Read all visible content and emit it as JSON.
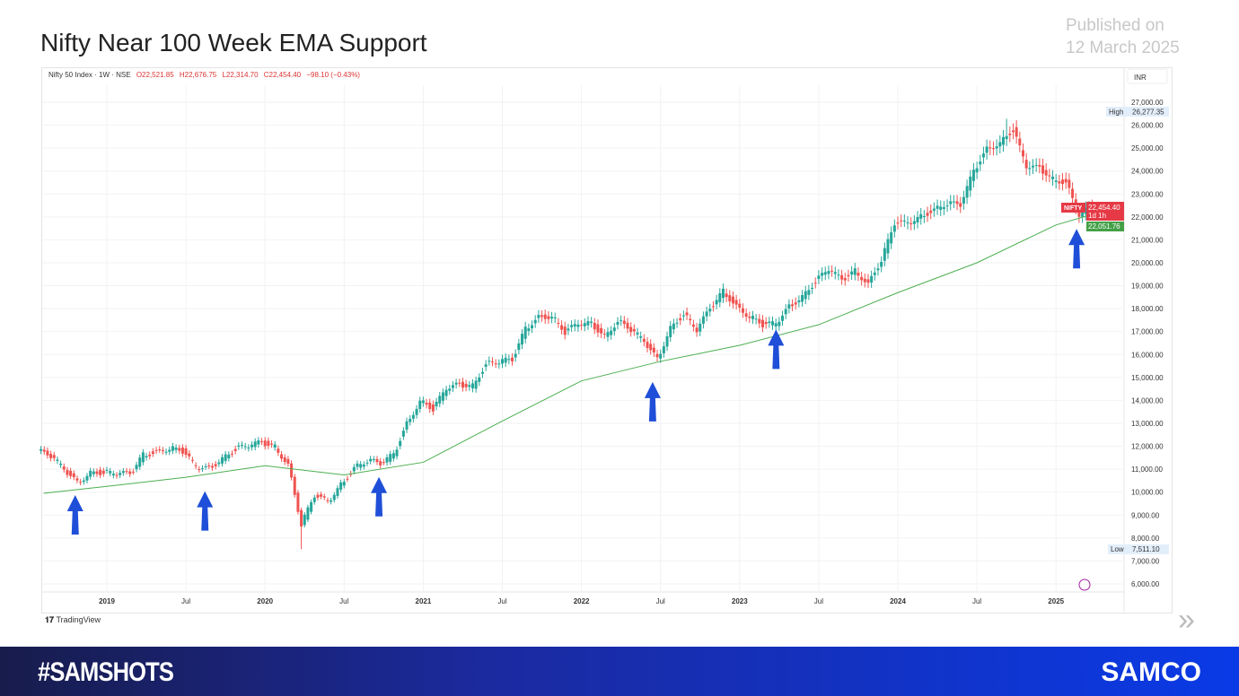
{
  "header": {
    "title": "Nifty Near 100 Week EMA Support",
    "published_label": "Published on",
    "published_date": "12 March 2025"
  },
  "legend": {
    "symbol": "Nifty 50 Index · 1W · NSE",
    "open": "O22,521.85",
    "high": "H22,676.75",
    "low": "L22,314.70",
    "close": "C22,454.40",
    "change": "−98.10 (−0.43%)"
  },
  "currency": "INR",
  "footer": {
    "hashtag": "#SAMSHOTS",
    "brand": "SAMCO",
    "tv_logo": "TradingView"
  },
  "colors": {
    "up": "#26a69a",
    "down": "#ef5350",
    "ema": "#4caf50",
    "arrow": "#1f4fd8",
    "footer_start": "#181c4c",
    "footer_end": "#0a3ae6"
  },
  "chart_data": {
    "type": "candlestick",
    "title": "Nifty Near 100 Week EMA Support",
    "ylim": [
      6000,
      27000
    ],
    "y_ticks": [
      "27,000.00",
      "26,000.00",
      "25,000.00",
      "24,000.00",
      "23,000.00",
      "22,000.00",
      "21,000.00",
      "20,000.00",
      "19,000.00",
      "18,000.00",
      "17,000.00",
      "16,000.00",
      "15,000.00",
      "14,000.00",
      "13,000.00",
      "12,000.00",
      "11,000.00",
      "10,000.00",
      "9,000.00",
      "8,000.00",
      "7,000.00",
      "6,000.00"
    ],
    "x_ticks": [
      {
        "label": "2019",
        "t": 2019.0
      },
      {
        "label": "Jul",
        "t": 2019.5
      },
      {
        "label": "2020",
        "t": 2020.0
      },
      {
        "label": "Jul",
        "t": 2020.5
      },
      {
        "label": "2021",
        "t": 2021.0
      },
      {
        "label": "Jul",
        "t": 2021.5
      },
      {
        "label": "2022",
        "t": 2022.0
      },
      {
        "label": "Jul",
        "t": 2022.5
      },
      {
        "label": "2023",
        "t": 2023.0
      },
      {
        "label": "Jul",
        "t": 2023.5
      },
      {
        "label": "2024",
        "t": 2024.0
      },
      {
        "label": "Jul",
        "t": 2024.5
      },
      {
        "label": "2025",
        "t": 2025.0
      }
    ],
    "start": "2018-08",
    "approx_monthly_close": [
      11600,
      11000,
      10400,
      10850,
      10860,
      10830,
      10790,
      11620,
      11750,
      11920,
      11790,
      11120,
      11020,
      11470,
      11880,
      12050,
      12170,
      11960,
      11200,
      8600,
      9860,
      9580,
      10300,
      11070,
      11390,
      11250,
      11640,
      12970,
      13980,
      13630,
      14530,
      14690,
      14630,
      15580,
      15720,
      15760,
      17130,
      17620,
      17670,
      16980,
      17350,
      17340,
      16790,
      17460,
      17100,
      16580,
      15780,
      17160,
      17760,
      17090,
      18010,
      18760,
      18100,
      17660,
      17300,
      17360,
      18070,
      18530,
      19190,
      19750,
      19250,
      19640,
      19080,
      20130,
      21730,
      21730,
      22000,
      22330,
      22600,
      22530,
      24010,
      24950,
      25240,
      25810,
      24200,
      24130,
      23640,
      23500,
      22120,
      22454.4
    ],
    "ema_100w": {
      "name": "",
      "t": [
        2018.6,
        2019.0,
        2019.5,
        2020.0,
        2020.5,
        2021.0,
        2021.5,
        2022.0,
        2022.5,
        2023.0,
        2023.5,
        2024.0,
        2024.5,
        2025.0,
        2025.2
      ],
      "values": [
        9950,
        10250,
        10650,
        11150,
        10750,
        11300,
        13100,
        14850,
        15700,
        16400,
        17300,
        18700,
        20000,
        21650,
        22051.76
      ]
    },
    "markers": {
      "high": {
        "label": "High",
        "value": "26,277.35"
      },
      "low": {
        "label": "Low",
        "value": "7,511.10"
      },
      "last": {
        "label": "NIFTY",
        "value": "22,454.40",
        "countdown": "1d 1h"
      },
      "ema_last": "22,051.76"
    },
    "support_arrows_t": [
      2018.8,
      2019.62,
      2020.72,
      2022.45,
      2023.23,
      2025.13
    ]
  }
}
